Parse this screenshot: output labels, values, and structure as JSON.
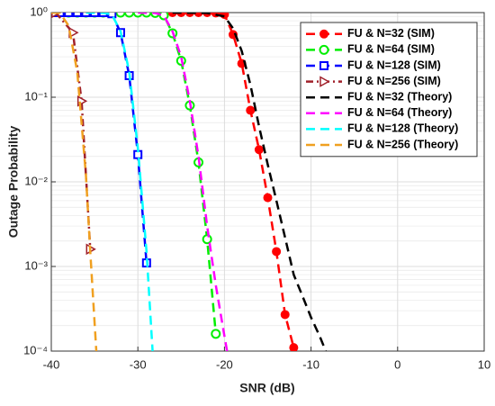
{
  "chart_data": {
    "type": "line",
    "xlabel": "SNR (dB)",
    "ylabel": "Outage Probability",
    "xlim": [
      -40,
      10
    ],
    "xticks": [
      -40,
      -30,
      -20,
      -10,
      0,
      10
    ],
    "ylim": [
      0.0001,
      1
    ],
    "yticks": [
      {
        "value": 1,
        "label": "10⁰"
      },
      {
        "value": 0.1,
        "label": "10⁻¹"
      },
      {
        "value": 0.01,
        "label": "10⁻²"
      },
      {
        "value": 0.001,
        "label": "10⁻³"
      },
      {
        "value": 0.0001,
        "label": "10⁻⁴"
      }
    ],
    "log_y": true,
    "grid": true,
    "legend": "upper right",
    "series": [
      {
        "name": "FU & N=32 (SIM)",
        "color": "#ff0000",
        "marker": "circle-filled",
        "dash": "long",
        "x": [
          -27,
          -26,
          -25,
          -24,
          -23,
          -22,
          -21,
          -20,
          -19,
          -18,
          -17,
          -16,
          -15,
          -14,
          -13,
          -12
        ],
        "values": [
          1,
          1,
          1,
          1,
          1,
          1,
          0.99,
          0.95,
          0.55,
          0.25,
          0.07,
          0.024,
          0.0065,
          0.0015,
          0.00027,
          0.00011
        ]
      },
      {
        "name": "FU & N=64 (SIM)",
        "color": "#00ee00",
        "marker": "circle",
        "dash": "long",
        "x": [
          -38,
          -37,
          -36,
          -35,
          -34,
          -33,
          -32,
          -31,
          -30,
          -29,
          -28,
          -27,
          -26,
          -25,
          -24,
          -23,
          -22,
          -21
        ],
        "values": [
          1,
          1,
          1,
          1,
          1,
          1,
          1,
          1,
          1,
          1,
          0.99,
          0.93,
          0.57,
          0.27,
          0.08,
          0.017,
          0.0021,
          0.00016
        ]
      },
      {
        "name": "FU & N=128 (SIM)",
        "color": "#0000ff",
        "marker": "square",
        "dash": "long",
        "x": [
          -40,
          -39,
          -38,
          -37,
          -36,
          -35,
          -34,
          -33,
          -32,
          -31,
          -30,
          -29
        ],
        "values": [
          1,
          1,
          1,
          1,
          1,
          1,
          1,
          0.97,
          0.58,
          0.18,
          0.021,
          0.0011
        ]
      },
      {
        "name": "FU & N=256 (SIM)",
        "color": "#a0202a",
        "marker": "triangle-right",
        "dash": "dashdot",
        "x": [
          -39.5,
          -37.5,
          -36.5,
          -35.5
        ],
        "values": [
          1,
          0.58,
          0.09,
          0.0016
        ]
      },
      {
        "name": "FU & N=32 (Theory)",
        "color": "#000000",
        "marker": null,
        "dash": "long",
        "x": [
          -26,
          -22,
          -20,
          -19,
          -18,
          -17,
          -16,
          -15,
          -14,
          -13,
          -12,
          -11,
          -10,
          -9,
          -8.3
        ],
        "values": [
          1,
          0.99,
          0.9,
          0.65,
          0.35,
          0.14,
          0.045,
          0.016,
          0.006,
          0.0022,
          0.0008,
          0.00045,
          0.00025,
          0.00015,
          0.0001
        ]
      },
      {
        "name": "FU & N=64 (Theory)",
        "color": "#ff00ff",
        "marker": null,
        "dash": "long",
        "x": [
          -30,
          -28,
          -27,
          -26,
          -25,
          -24,
          -23,
          -22,
          -21,
          -20,
          -19.7
        ],
        "values": [
          1,
          0.99,
          0.92,
          0.6,
          0.3,
          0.09,
          0.02,
          0.003,
          0.0006,
          0.00015,
          0.0001
        ]
      },
      {
        "name": "FU & N=128 (Theory)",
        "color": "#00ffff",
        "marker": null,
        "dash": "long",
        "x": [
          -36,
          -34,
          -33,
          -32,
          -31,
          -30,
          -29,
          -28.3
        ],
        "values": [
          1,
          0.99,
          0.95,
          0.6,
          0.2,
          0.025,
          0.0015,
          0.0001
        ]
      },
      {
        "name": "FU & N=256 (Theory)",
        "color": "#f0a020",
        "marker": null,
        "dash": "long",
        "x": [
          -40,
          -39,
          -38,
          -37,
          -36,
          -35.5,
          -34.8
        ],
        "values": [
          1,
          0.99,
          0.7,
          0.2,
          0.012,
          0.0015,
          0.0001
        ]
      }
    ]
  }
}
